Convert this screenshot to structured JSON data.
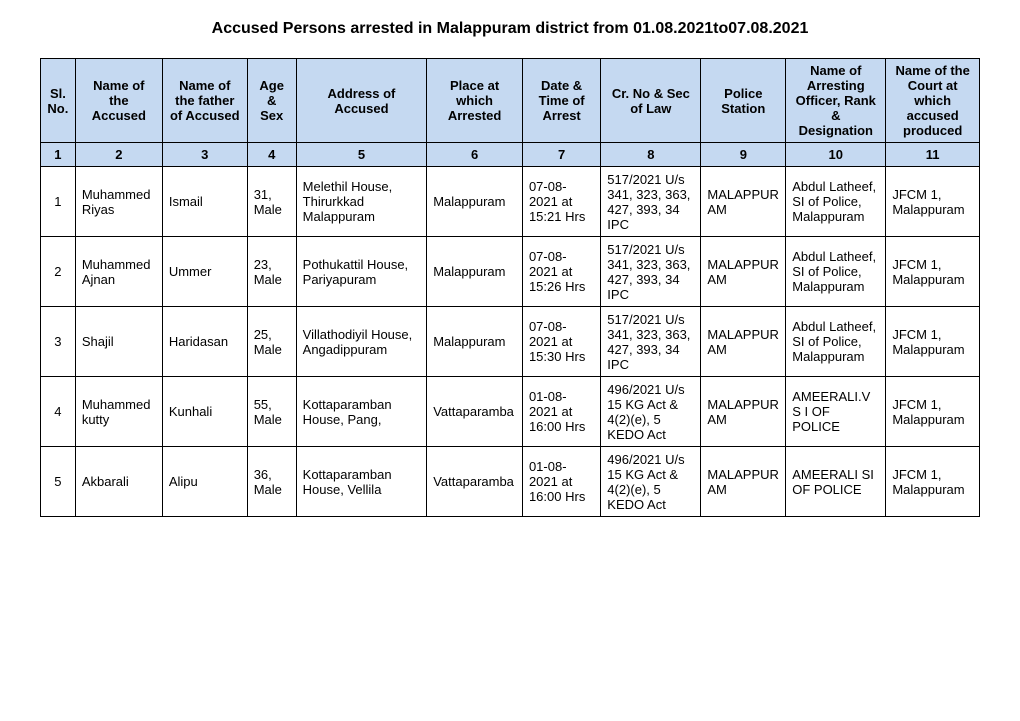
{
  "title": "Accused Persons arrested in    Malappuram    district from   01.08.2021to07.08.2021",
  "headers": [
    "Sl. No.",
    "Name of the Accused",
    "Name of the father of Accused",
    "Age & Sex",
    "Address of Accused",
    "Place at which Arrested",
    "Date & Time of Arrest",
    "Cr. No & Sec of Law",
    "Police Station",
    "Name of Arresting Officer, Rank & Designation",
    "Name of the Court at which accused produced"
  ],
  "colnums": [
    "1",
    "2",
    "3",
    "4",
    "5",
    "6",
    "7",
    "8",
    "9",
    "10",
    "11"
  ],
  "rows": [
    {
      "sl": "1",
      "name": "Muhammed Riyas",
      "father": "Ismail",
      "age_sex": "31, Male",
      "address": "Melethil House, Thirurkkad Malappuram",
      "place": "Malappuram",
      "datetime": "07-08-2021 at 15:21 Hrs",
      "crno": "517/2021 U/s 341, 323, 363, 427, 393, 34 IPC",
      "station": "MALAPPURAM",
      "officer": "Abdul Latheef, SI of Police, Malappuram",
      "court": "JFCM 1, Malappuram"
    },
    {
      "sl": "2",
      "name": "Muhammed Ajnan",
      "father": "Ummer",
      "age_sex": "23, Male",
      "address": "Pothukattil House, Pariyapuram",
      "place": "Malappuram",
      "datetime": "07-08-2021 at 15:26 Hrs",
      "crno": "517/2021 U/s 341, 323, 363, 427, 393, 34 IPC",
      "station": "MALAPPURAM",
      "officer": "Abdul Latheef, SI of Police, Malappuram",
      "court": "JFCM 1, Malappuram"
    },
    {
      "sl": "3",
      "name": "Shajil",
      "father": "Haridasan",
      "age_sex": "25, Male",
      "address": "Villathodiyil House, Angadippuram",
      "place": "Malappuram",
      "datetime": "07-08-2021 at 15:30 Hrs",
      "crno": "517/2021 U/s 341, 323, 363, 427, 393, 34 IPC",
      "station": "MALAPPURAM",
      "officer": "Abdul Latheef, SI of Police, Malappuram",
      "court": "JFCM 1, Malappuram"
    },
    {
      "sl": "4",
      "name": "Muhammed kutty",
      "father": "Kunhali",
      "age_sex": "55, Male",
      "address": "Kottaparamban House, Pang,",
      "place": "Vattaparamba",
      "datetime": "01-08-2021 at 16:00 Hrs",
      "crno": "496/2021 U/s 15 KG Act & 4(2)(e), 5 KEDO Act",
      "station": "MALAPPURAM",
      "officer": "AMEERALI.V S I OF POLICE",
      "court": "JFCM 1, Malappuram"
    },
    {
      "sl": "5",
      "name": "Akbarali",
      "father": "Alipu",
      "age_sex": "36, Male",
      "address": "Kottaparamban House, Vellila",
      "place": "Vattaparamba",
      "datetime": "01-08-2021 at 16:00 Hrs",
      "crno": "496/2021 U/s 15 KG Act & 4(2)(e), 5 KEDO Act",
      "station": "MALAPPURAM",
      "officer": "AMEERALI SI OF POLICE",
      "court": "JFCM 1, Malappuram"
    }
  ]
}
